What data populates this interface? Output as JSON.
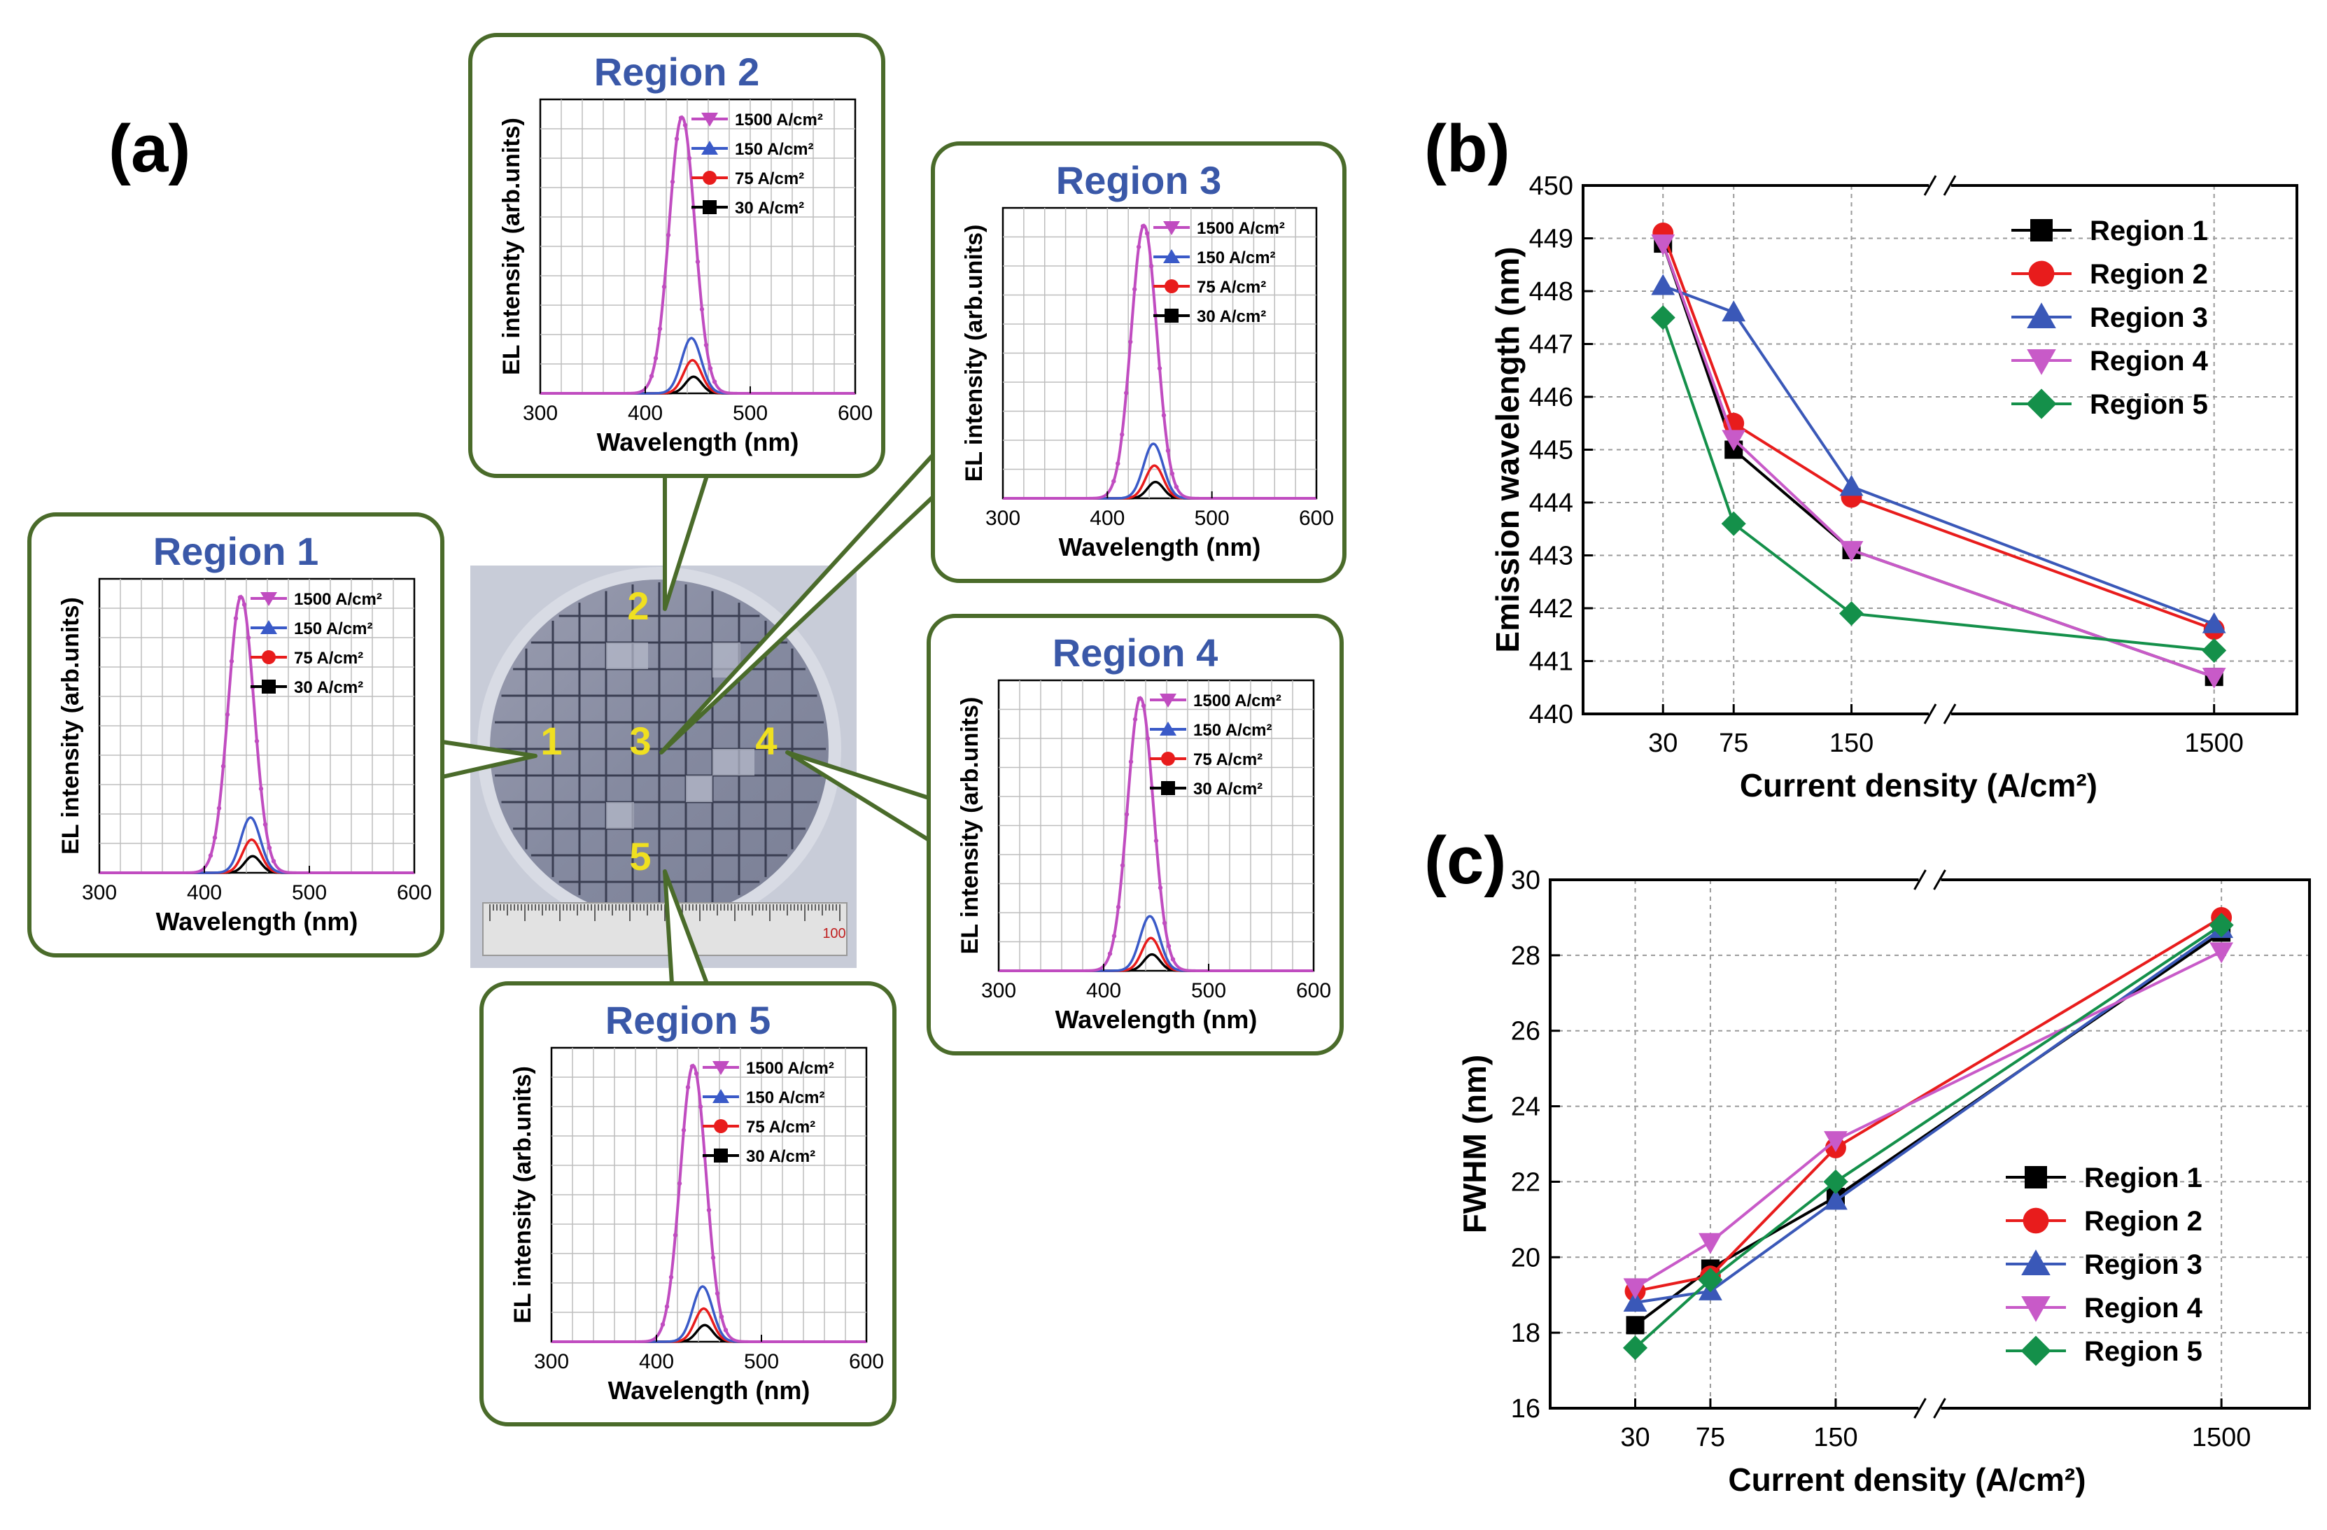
{
  "figure": {
    "panel_a_label": "(a)",
    "panel_b_label": "(b)",
    "panel_c_label": "(c)",
    "photo_markers": [
      "1",
      "2",
      "3",
      "4",
      "5"
    ],
    "ruler_label": "100",
    "colors": {
      "callout_border": "#4a6b2a",
      "region_title": "#3a58a8",
      "s1500": "#c04cc0",
      "s150": "#3a5ac8",
      "s75": "#e81c1c",
      "s30": "#000000",
      "region1": "#000000",
      "region2": "#e81c1c",
      "region3": "#3a58b8",
      "region4": "#c85ac8",
      "region5": "#14904a",
      "marker_label": "#f0e020"
    }
  },
  "chart_data": [
    {
      "type": "line",
      "id": "spectra",
      "region_titles": [
        "Region 1",
        "Region 2",
        "Region 3",
        "Region 4",
        "Region 5"
      ],
      "xlabel": "Wavelength (nm)",
      "ylabel": "EL intensity (arb.units)",
      "xlim": [
        300,
        600
      ],
      "xticks": [
        "300",
        "400",
        "500",
        "600"
      ],
      "legend": [
        "1500 A/cm²",
        "150 A/cm²",
        "75 A/cm²",
        "30 A/cm²"
      ],
      "series": [
        {
          "name": "1500 A/cm²",
          "peak_nm": 435,
          "rel_peak": 1.0,
          "fwhm_nm": 29
        },
        {
          "name": "150 A/cm²",
          "peak_nm": 444,
          "rel_peak": 0.2,
          "fwhm_nm": 22
        },
        {
          "name": "75 A/cm²",
          "peak_nm": 445,
          "rel_peak": 0.12,
          "fwhm_nm": 20
        },
        {
          "name": "30 A/cm²",
          "peak_nm": 446,
          "rel_peak": 0.06,
          "fwhm_nm": 18
        }
      ]
    },
    {
      "type": "line",
      "id": "b",
      "title": "",
      "xlabel": "Current density (A/cm²)",
      "ylabel": "Emission wavelength (nm)",
      "categories": [
        "30",
        "75",
        "150",
        "1500"
      ],
      "ylim": [
        440,
        450
      ],
      "yticks": [
        "440",
        "441",
        "442",
        "443",
        "444",
        "445",
        "446",
        "447",
        "448",
        "449",
        "450"
      ],
      "legend_position": "top-right",
      "series": [
        {
          "name": "Region 1",
          "values": [
            448.9,
            445.0,
            443.1,
            440.7
          ]
        },
        {
          "name": "Region 2",
          "values": [
            449.1,
            445.5,
            444.1,
            441.6
          ]
        },
        {
          "name": "Region 3",
          "values": [
            448.1,
            447.6,
            444.3,
            441.7
          ]
        },
        {
          "name": "Region 4",
          "values": [
            448.9,
            445.2,
            443.1,
            440.7
          ]
        },
        {
          "name": "Region 5",
          "values": [
            447.5,
            443.6,
            441.9,
            441.2
          ]
        }
      ]
    },
    {
      "type": "line",
      "id": "c",
      "title": "",
      "xlabel": "Current density (A/cm²)",
      "ylabel": "FWHM (nm)",
      "categories": [
        "30",
        "75",
        "150",
        "1500"
      ],
      "ylim": [
        16,
        30
      ],
      "yticks": [
        "16",
        "18",
        "20",
        "22",
        "24",
        "26",
        "28",
        "30"
      ],
      "legend_position": "bottom-right",
      "series": [
        {
          "name": "Region 1",
          "values": [
            18.2,
            19.7,
            21.6,
            28.6
          ]
        },
        {
          "name": "Region 2",
          "values": [
            19.1,
            19.5,
            22.9,
            29.0
          ]
        },
        {
          "name": "Region 3",
          "values": [
            18.8,
            19.1,
            21.5,
            28.7
          ]
        },
        {
          "name": "Region 4",
          "values": [
            19.2,
            20.4,
            23.1,
            28.1
          ]
        },
        {
          "name": "Region 5",
          "values": [
            17.6,
            19.4,
            22.0,
            28.8
          ]
        }
      ]
    }
  ]
}
